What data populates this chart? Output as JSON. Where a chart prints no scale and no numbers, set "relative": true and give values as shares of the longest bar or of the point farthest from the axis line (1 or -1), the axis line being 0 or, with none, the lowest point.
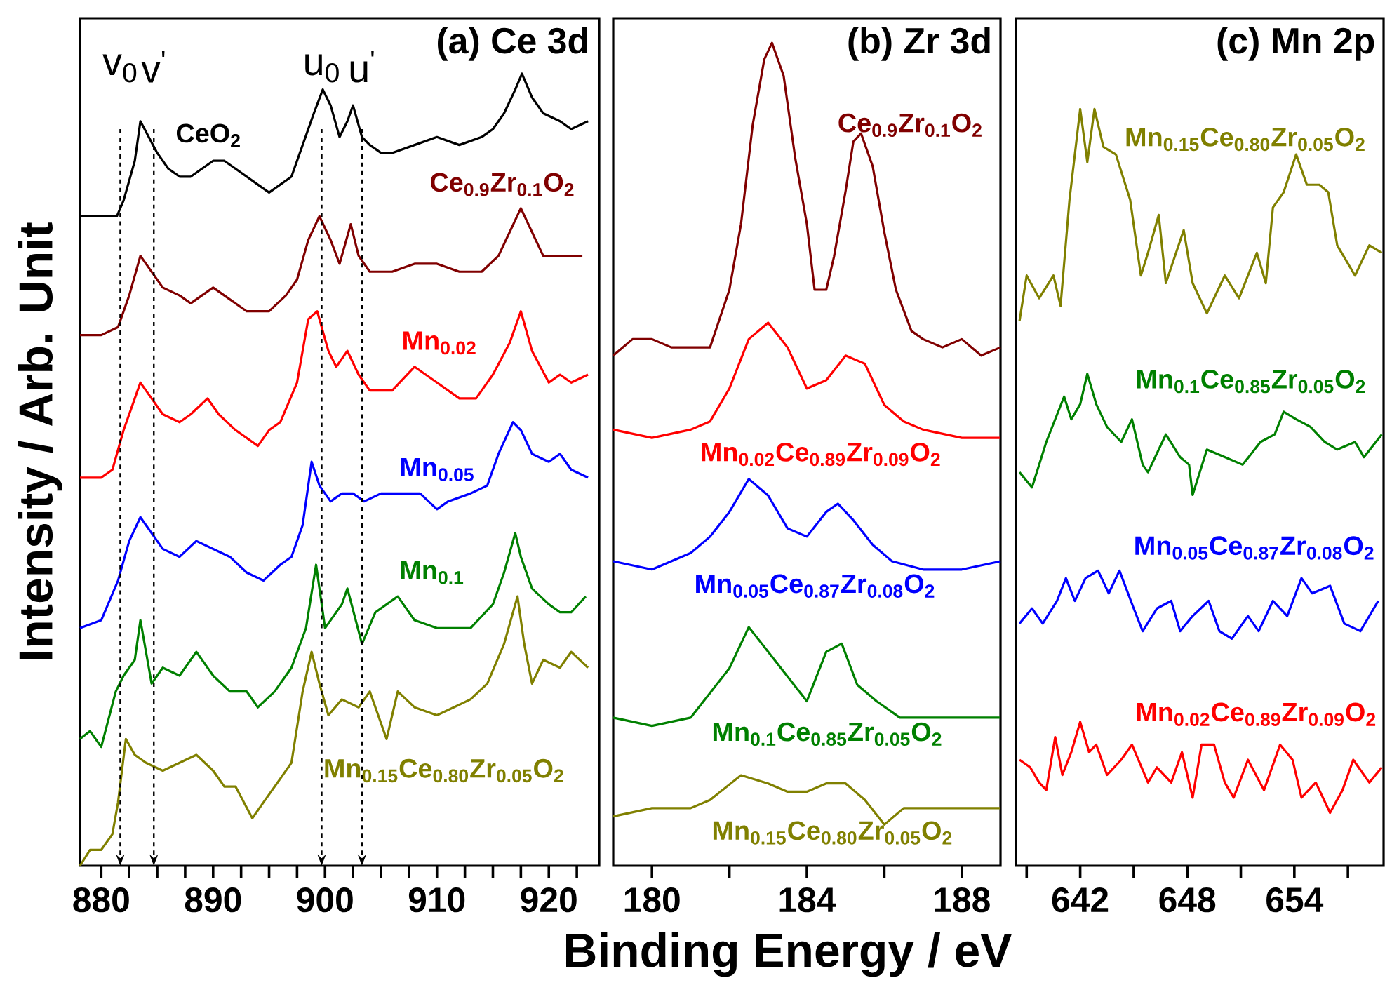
{
  "chart_data": [
    {
      "type": "line",
      "title": "(a) Ce 3d",
      "ylabel": "Intensity / Arb. Unit",
      "relative": true,
      "tick_labels": "x",
      "xlim": [
        878.1,
        924.5
      ],
      "xticks": [
        880,
        {
          "value": 882.5,
          "label": null
        },
        {
          "value": 885,
          "label": null
        },
        {
          "value": 887.5,
          "label": null
        },
        890,
        {
          "value": 892.5,
          "label": null
        },
        {
          "value": 895,
          "label": null
        },
        {
          "value": 897.5,
          "label": null
        },
        900,
        {
          "value": 902.5,
          "label": null
        },
        {
          "value": 905,
          "label": null
        },
        {
          "value": 907.5,
          "label": null
        },
        910,
        {
          "value": 912.5,
          "label": null
        },
        {
          "value": 915,
          "label": null
        },
        {
          "value": 917.5,
          "label": null
        },
        920,
        {
          "value": 922.5,
          "label": null
        }
      ],
      "ref_lines": [
        {
          "axis": "x",
          "value": 881.7,
          "label": "v$_{0}$",
          "line_style": "dashed"
        },
        {
          "axis": "x",
          "value": 884.7,
          "label": "v$^{'}$",
          "line_style": "dashed"
        },
        {
          "axis": "x",
          "value": 899.7,
          "label": "u$_{0}$",
          "line_style": "dashed"
        },
        {
          "axis": "x",
          "value": 903.3,
          "label": "u$^{'}$",
          "line_style": "dashed"
        }
      ],
      "series": [
        {
          "name": "CeO$_{2}$",
          "color": "#000000",
          "x": [
            878.1,
            880,
            881.4,
            882,
            883,
            883.5,
            885,
            886,
            887,
            888,
            890,
            891,
            892,
            893,
            894,
            895,
            896,
            897,
            898,
            899,
            899.8,
            900.5,
            901.3,
            902,
            902.5,
            903.3,
            904,
            905,
            906,
            908,
            910,
            912,
            914,
            915,
            916,
            917,
            917.6,
            918.5,
            919.5,
            921,
            922,
            923.5
          ],
          "values": [
            0.82,
            0.82,
            0.82,
            0.84,
            0.89,
            0.94,
            0.9,
            0.88,
            0.87,
            0.87,
            0.89,
            0.89,
            0.88,
            0.87,
            0.86,
            0.85,
            0.86,
            0.87,
            0.91,
            0.95,
            0.98,
            0.96,
            0.92,
            0.94,
            0.96,
            0.92,
            0.91,
            0.9,
            0.9,
            0.91,
            0.92,
            0.91,
            0.92,
            0.93,
            0.95,
            0.98,
            1.0,
            0.97,
            0.95,
            0.94,
            0.93,
            0.94
          ]
        },
        {
          "name": "Ce$_{0.9}$Zr$_{0.1}$O$_{2}$",
          "color": "#800000",
          "x": [
            878.1,
            880,
            881.5,
            882.5,
            883.5,
            884.5,
            885.5,
            887,
            888,
            890,
            891,
            893,
            894,
            895,
            896.5,
            897.5,
            898.5,
            899.5,
            900.5,
            901.3,
            902.3,
            903,
            904,
            906,
            908,
            910,
            912,
            914,
            915.5,
            916.5,
            917.5,
            918.5,
            919.5,
            921,
            923
          ],
          "values": [
            0.67,
            0.67,
            0.68,
            0.72,
            0.77,
            0.75,
            0.73,
            0.72,
            0.71,
            0.73,
            0.72,
            0.7,
            0.7,
            0.7,
            0.72,
            0.74,
            0.79,
            0.82,
            0.79,
            0.76,
            0.81,
            0.77,
            0.75,
            0.75,
            0.76,
            0.76,
            0.75,
            0.75,
            0.77,
            0.8,
            0.83,
            0.8,
            0.77,
            0.77,
            0.77
          ]
        },
        {
          "name": "Mn$_{0.02}$",
          "color": "#ff0000",
          "x": [
            878.1,
            880,
            881,
            882,
            883,
            883.5,
            884.5,
            885.5,
            887,
            888,
            889.5,
            890.5,
            892,
            894,
            895,
            896,
            897.5,
            898.5,
            899.3,
            900.3,
            901,
            902,
            903,
            904,
            906,
            908,
            910,
            912,
            913.5,
            915,
            916.5,
            917.5,
            918.5,
            920,
            921,
            922,
            923.5
          ],
          "values": [
            0.49,
            0.49,
            0.5,
            0.55,
            0.59,
            0.61,
            0.59,
            0.57,
            0.56,
            0.57,
            0.59,
            0.57,
            0.55,
            0.53,
            0.55,
            0.56,
            0.61,
            0.69,
            0.7,
            0.65,
            0.63,
            0.65,
            0.62,
            0.6,
            0.6,
            0.63,
            0.61,
            0.59,
            0.59,
            0.62,
            0.66,
            0.7,
            0.65,
            0.61,
            0.62,
            0.61,
            0.62
          ]
        },
        {
          "name": "Mn$_{0.05}$",
          "color": "#0000ff",
          "x": [
            878.1,
            880,
            881.5,
            882.5,
            883.5,
            884.5,
            885.5,
            887,
            888.5,
            890,
            891.5,
            893,
            894.5,
            896,
            897,
            898,
            898.8,
            899.5,
            900.5,
            901.5,
            902.5,
            903.5,
            905,
            907,
            908.5,
            910,
            911,
            913,
            914.5,
            915.5,
            916.8,
            917.5,
            918.5,
            920,
            921,
            922,
            923.5
          ],
          "values": [
            0.3,
            0.31,
            0.36,
            0.41,
            0.44,
            0.42,
            0.4,
            0.39,
            0.41,
            0.4,
            0.39,
            0.37,
            0.36,
            0.38,
            0.39,
            0.43,
            0.51,
            0.48,
            0.46,
            0.47,
            0.47,
            0.46,
            0.47,
            0.47,
            0.47,
            0.45,
            0.46,
            0.47,
            0.48,
            0.52,
            0.56,
            0.55,
            0.52,
            0.51,
            0.52,
            0.5,
            0.49
          ]
        },
        {
          "name": "Mn$_{0.1}$",
          "color": "#008000",
          "x": [
            878.1,
            879,
            880,
            881.3,
            882,
            883,
            883.5,
            884.5,
            885.5,
            887,
            888.5,
            890,
            891.5,
            893,
            894,
            895.5,
            897,
            898.3,
            899.2,
            900,
            901.5,
            902,
            903.3,
            904.5,
            906.5,
            908,
            910,
            911.5,
            913,
            915,
            916,
            917,
            917.5,
            918.5,
            920,
            921,
            922,
            923.3
          ],
          "values": [
            0.16,
            0.17,
            0.15,
            0.22,
            0.24,
            0.26,
            0.31,
            0.23,
            0.25,
            0.24,
            0.27,
            0.24,
            0.22,
            0.22,
            0.2,
            0.22,
            0.25,
            0.3,
            0.38,
            0.3,
            0.33,
            0.35,
            0.28,
            0.32,
            0.34,
            0.31,
            0.3,
            0.3,
            0.3,
            0.33,
            0.37,
            0.42,
            0.39,
            0.35,
            0.33,
            0.32,
            0.32,
            0.34
          ]
        },
        {
          "name": "Mn$_{0.15}$Ce$_{0.80}$Zr$_{0.05}$O$_{2}$",
          "color": "#808000",
          "x": [
            878.1,
            879,
            880,
            881,
            881.5,
            882.2,
            883,
            884,
            885.5,
            887,
            888.5,
            890,
            891,
            892,
            893.5,
            894.5,
            896,
            897,
            898,
            898.8,
            899.5,
            900.3,
            901.5,
            903,
            904,
            905.5,
            906.5,
            908,
            910,
            911.5,
            913,
            914.5,
            916,
            917.2,
            917.8,
            918.5,
            919.5,
            921,
            922,
            923.5
          ],
          "values": [
            0.0,
            0.02,
            0.02,
            0.04,
            0.08,
            0.16,
            0.14,
            0.13,
            0.12,
            0.13,
            0.14,
            0.12,
            0.1,
            0.1,
            0.06,
            0.08,
            0.11,
            0.13,
            0.22,
            0.27,
            0.23,
            0.19,
            0.21,
            0.2,
            0.22,
            0.16,
            0.22,
            0.2,
            0.19,
            0.2,
            0.21,
            0.23,
            0.28,
            0.34,
            0.28,
            0.23,
            0.26,
            0.25,
            0.27,
            0.25
          ]
        }
      ]
    },
    {
      "type": "line",
      "title": "(b) Zr 3d",
      "xlabel": "Binding Energy / eV",
      "relative": true,
      "tick_labels": "x",
      "xlim": [
        179,
        189
      ],
      "xticks": [
        180,
        {
          "value": 182,
          "label": null
        },
        184,
        {
          "value": 186,
          "label": null
        },
        188
      ],
      "series": [
        {
          "name": "Ce$_{0.9}$Zr$_{0.1}$O$_{2}$",
          "color": "#800000",
          "x": [
            179,
            179.5,
            180,
            180.5,
            181,
            181.5,
            182,
            182.3,
            182.6,
            182.9,
            183.1,
            183.4,
            183.7,
            184,
            184.2,
            184.5,
            184.7,
            185,
            185.2,
            185.4,
            185.7,
            186,
            186.3,
            186.7,
            187,
            187.5,
            188,
            188.5,
            189
          ],
          "values": [
            0.62,
            0.64,
            0.64,
            0.63,
            0.63,
            0.63,
            0.7,
            0.78,
            0.9,
            0.98,
            1.0,
            0.96,
            0.86,
            0.78,
            0.7,
            0.7,
            0.74,
            0.82,
            0.88,
            0.89,
            0.85,
            0.77,
            0.7,
            0.65,
            0.64,
            0.63,
            0.64,
            0.62,
            0.63
          ]
        },
        {
          "name": "Mn$_{0.02}$Ce$_{0.89}$Zr$_{0.09}$O$_{2}$",
          "color": "#ff0000",
          "x": [
            179,
            180,
            181,
            181.5,
            182,
            182.5,
            183,
            183.5,
            184,
            184.5,
            185,
            185.5,
            186,
            186.5,
            187,
            188,
            189
          ],
          "values": [
            0.53,
            0.52,
            0.53,
            0.54,
            0.58,
            0.64,
            0.66,
            0.63,
            0.58,
            0.59,
            0.62,
            0.61,
            0.56,
            0.54,
            0.53,
            0.52,
            0.52
          ]
        },
        {
          "name": "Mn$_{0.05}$Ce$_{0.87}$Zr$_{0.08}$O$_{2}$",
          "color": "#0000ff",
          "x": [
            179,
            180,
            180.5,
            181,
            181.5,
            182,
            182.5,
            183,
            183.5,
            184,
            184.5,
            184.8,
            185.2,
            185.7,
            186.2,
            187,
            188,
            189
          ],
          "values": [
            0.37,
            0.36,
            0.37,
            0.38,
            0.4,
            0.43,
            0.47,
            0.45,
            0.41,
            0.4,
            0.43,
            0.44,
            0.42,
            0.39,
            0.37,
            0.36,
            0.36,
            0.37
          ]
        },
        {
          "name": "Mn$_{0.1}$Ce$_{0.85}$Zr$_{0.05}$O$_{2}$",
          "color": "#008000",
          "x": [
            179,
            180,
            181,
            181.5,
            182,
            182.5,
            183,
            183.5,
            184,
            184.5,
            184.9,
            185.3,
            185.8,
            186.4,
            187,
            188,
            189
          ],
          "values": [
            0.18,
            0.17,
            0.18,
            0.21,
            0.24,
            0.29,
            0.26,
            0.23,
            0.2,
            0.26,
            0.27,
            0.22,
            0.2,
            0.18,
            0.18,
            0.18,
            0.18
          ]
        },
        {
          "name": "Mn$_{0.15}$Ce$_{0.80}$Zr$_{0.05}$O$_{2}$",
          "color": "#808000",
          "x": [
            179,
            180,
            181,
            181.5,
            182.3,
            183,
            183.5,
            184,
            184.5,
            185,
            185.5,
            186,
            186.5,
            187,
            188,
            189
          ],
          "values": [
            0.06,
            0.07,
            0.07,
            0.08,
            0.11,
            0.1,
            0.09,
            0.09,
            0.1,
            0.1,
            0.08,
            0.05,
            0.07,
            0.07,
            0.07,
            0.07
          ]
        }
      ]
    },
    {
      "type": "line",
      "title": "(c) Mn 2p",
      "relative": true,
      "tick_labels": "x",
      "xlim": [
        638.4,
        659
      ],
      "xticks": [
        {
          "value": 639,
          "label": null
        },
        642,
        {
          "value": 645,
          "label": null
        },
        648,
        {
          "value": 651,
          "label": null
        },
        654,
        {
          "value": 657,
          "label": null
        }
      ],
      "series": [
        {
          "name": "Mn$_{0.15}$Ce$_{0.80}$Zr$_{0.05}$O$_{2}$",
          "color": "#808000",
          "x": [
            638.6,
            639.0,
            639.7,
            640.5,
            640.9,
            641.4,
            642.0,
            642.4,
            642.8,
            643.3,
            644.0,
            644.8,
            645.4,
            645.8,
            646.4,
            646.8,
            647.8,
            648.3,
            649.1,
            650.1,
            650.9,
            651.9,
            652.4,
            652.8,
            653.4,
            654.1,
            654.7,
            655.4,
            655.9,
            656.4,
            657.4,
            658.2,
            658.9
          ],
          "values": [
            0.72,
            0.78,
            0.75,
            0.78,
            0.74,
            0.88,
            1.0,
            0.93,
            1.0,
            0.95,
            0.94,
            0.88,
            0.78,
            0.81,
            0.86,
            0.77,
            0.84,
            0.77,
            0.73,
            0.78,
            0.75,
            0.81,
            0.77,
            0.87,
            0.89,
            0.94,
            0.9,
            0.9,
            0.89,
            0.82,
            0.78,
            0.82,
            0.81
          ]
        },
        {
          "name": "Mn$_{0.1}$Ce$_{0.85}$Zr$_{0.05}$O$_{2}$",
          "color": "#008000",
          "x": [
            638.6,
            639.3,
            640.1,
            640.6,
            641.1,
            641.5,
            642.0,
            642.4,
            642.9,
            643.5,
            644.3,
            644.9,
            645.5,
            645.8,
            646.8,
            647.6,
            648.1,
            648.3,
            649.1,
            650.1,
            651.1,
            652.1,
            652.9,
            653.4,
            654.1,
            654.9,
            655.7,
            656.4,
            657.4,
            657.9,
            658.9
          ],
          "values": [
            0.52,
            0.5,
            0.56,
            0.59,
            0.62,
            0.59,
            0.61,
            0.65,
            0.61,
            0.58,
            0.56,
            0.59,
            0.53,
            0.52,
            0.57,
            0.54,
            0.53,
            0.49,
            0.55,
            0.54,
            0.53,
            0.56,
            0.57,
            0.6,
            0.59,
            0.58,
            0.56,
            0.55,
            0.56,
            0.54,
            0.57
          ]
        },
        {
          "name": "Mn$_{0.05}$Ce$_{0.87}$Zr$_{0.08}$O$_{2}$",
          "color": "#0000ff",
          "x": [
            638.6,
            639.3,
            639.9,
            640.7,
            641.2,
            641.7,
            642.3,
            643.0,
            643.6,
            644.2,
            645.0,
            645.5,
            646.3,
            647.1,
            647.6,
            648.3,
            649.2,
            649.8,
            650.5,
            651.4,
            652.0,
            652.8,
            653.6,
            654.4,
            655.0,
            656.0,
            656.8,
            657.7,
            658.7
          ],
          "values": [
            0.32,
            0.34,
            0.32,
            0.35,
            0.38,
            0.35,
            0.38,
            0.39,
            0.36,
            0.39,
            0.34,
            0.31,
            0.34,
            0.35,
            0.31,
            0.33,
            0.35,
            0.31,
            0.3,
            0.33,
            0.31,
            0.35,
            0.33,
            0.38,
            0.36,
            0.37,
            0.32,
            0.31,
            0.35
          ]
        },
        {
          "name": "Mn$_{0.02}$Ce$_{0.89}$Zr$_{0.09}$O$_{2}$",
          "color": "#ff0000",
          "x": [
            638.6,
            639.2,
            639.7,
            640.1,
            640.6,
            641.0,
            641.5,
            642.0,
            642.5,
            642.9,
            643.5,
            644.3,
            644.9,
            645.8,
            646.3,
            647.1,
            647.7,
            648.3,
            648.8,
            649.5,
            650.1,
            650.6,
            651.4,
            652.3,
            653.2,
            653.9,
            654.4,
            655.2,
            656.0,
            656.7,
            657.3,
            658.2,
            658.9
          ],
          "values": [
            0.14,
            0.13,
            0.11,
            0.1,
            0.17,
            0.12,
            0.15,
            0.19,
            0.15,
            0.16,
            0.12,
            0.14,
            0.16,
            0.11,
            0.13,
            0.11,
            0.15,
            0.09,
            0.16,
            0.16,
            0.11,
            0.09,
            0.14,
            0.1,
            0.16,
            0.14,
            0.09,
            0.11,
            0.07,
            0.1,
            0.14,
            0.11,
            0.13
          ]
        }
      ]
    }
  ]
}
